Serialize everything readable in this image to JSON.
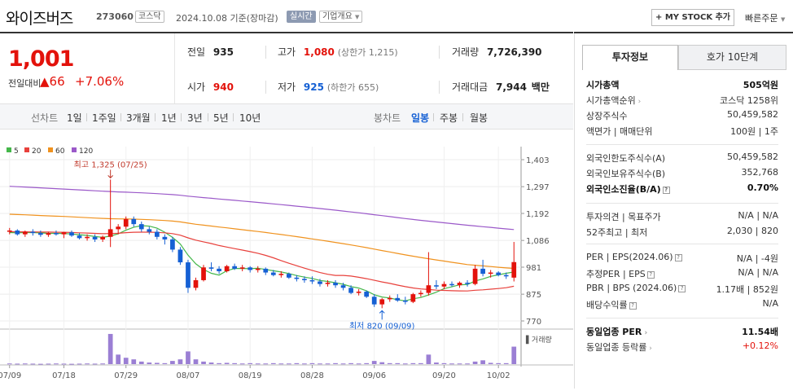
{
  "header": {
    "name": "와이즈버즈",
    "code": "273060",
    "market": "코스닥",
    "date": "2024.10.08  기준(장마감)",
    "realtime": "실시간",
    "company_info": "기업개요",
    "my_stock": "+ MY STOCK 추가",
    "quick_order": "빠른주문"
  },
  "price": {
    "current": "1,001",
    "change_label": "전일대비",
    "change_value": "▲66",
    "change_pct": "+7.06%"
  },
  "stats": {
    "prev_label": "전일",
    "prev": "935",
    "high_label": "고가",
    "high": "1,080",
    "upper_limit": "(상한가 1,215)",
    "volume_label": "거래량",
    "volume": "7,726,390",
    "open_label": "시가",
    "open": "940",
    "low_label": "저가",
    "low": "925",
    "lower_limit": "(하한가 655)",
    "amount_label": "거래대금",
    "amount": "7,944",
    "amount_unit": "백만"
  },
  "tabs": {
    "line_label": "선차트",
    "line_tabs": [
      "1일",
      "1주일",
      "3개월",
      "1년",
      "3년",
      "5년",
      "10년"
    ],
    "candle_label": "봉차트",
    "candle_tabs": [
      "일봉",
      "주봉",
      "월봉"
    ],
    "active_candle": "일봉"
  },
  "sidebar": {
    "tab_invest": "투자정보",
    "tab_hoga": "호가 10단계",
    "rows1": [
      {
        "label": "시가총액",
        "value": "505억원",
        "bold": true
      },
      {
        "label": "시가총액순위",
        "value": "코스닥 1258위",
        "arrow": true
      },
      {
        "label": "상장주식수",
        "value": "50,459,582"
      },
      {
        "label": "액면가 | 매매단위",
        "value": "100원 | 1주"
      }
    ],
    "rows2": [
      {
        "label": "외국인한도주식수(A)",
        "value": "50,459,582"
      },
      {
        "label": "외국인보유주식수(B)",
        "value": "352,768"
      },
      {
        "label": "외국인소진율(B/A)",
        "value": "0.70%",
        "bold": true,
        "help": true
      }
    ],
    "rows3": [
      {
        "label": "투자의견 | 목표주가",
        "value": "N/A | N/A"
      },
      {
        "label": "52주최고 | 최저",
        "value": "2,030 | 820"
      }
    ],
    "rows4": [
      {
        "label": "PER | EPS(2024.06)",
        "value": "N/A | -4원",
        "help": true
      },
      {
        "label": "추정PER | EPS",
        "value": "N/A | N/A",
        "help": true
      },
      {
        "label": "PBR | BPS (2024.06)",
        "value": "1.17배 | 852원",
        "help": true
      },
      {
        "label": "배당수익률",
        "value": "N/A",
        "help": true
      }
    ],
    "rows5": [
      {
        "label": "동일업종 PER",
        "value": "11.54배",
        "bold": true,
        "arrow": true
      },
      {
        "label": "동일업종 등락률",
        "value": "+0.12%",
        "arrow": true,
        "red": true
      }
    ]
  },
  "chart_data": {
    "type": "candlestick",
    "legend": [
      {
        "name": "5",
        "color": "#44b74a"
      },
      {
        "name": "20",
        "color": "#e8413c"
      },
      {
        "name": "60",
        "color": "#f0921e"
      },
      {
        "name": "120",
        "color": "#9b59c9"
      }
    ],
    "y_ticks": [
      1403,
      1297,
      1192,
      1086,
      981,
      875,
      770
    ],
    "ylim": [
      770,
      1403
    ],
    "x_ticks": [
      "07/09",
      "07/18",
      "07/29",
      "08/07",
      "08/19",
      "08/28",
      "09/06",
      "09/20",
      "10/02"
    ],
    "volume_label": "거래량",
    "annotation_high": "최고 1,325 (07/25)",
    "annotation_low": "최저 820 (09/09)",
    "candles": [
      [
        1120,
        1135,
        1110,
        1125
      ],
      [
        1125,
        1130,
        1105,
        1110
      ],
      [
        1110,
        1125,
        1100,
        1120
      ],
      [
        1120,
        1130,
        1105,
        1115
      ],
      [
        1115,
        1125,
        1100,
        1108
      ],
      [
        1108,
        1120,
        1100,
        1115
      ],
      [
        1115,
        1125,
        1105,
        1110
      ],
      [
        1110,
        1120,
        1095,
        1118
      ],
      [
        1118,
        1125,
        1100,
        1105
      ],
      [
        1105,
        1115,
        1090,
        1095
      ],
      [
        1095,
        1110,
        1085,
        1100
      ],
      [
        1100,
        1110,
        1080,
        1090
      ],
      [
        1090,
        1105,
        1080,
        1100
      ],
      [
        1100,
        1325,
        1060,
        1130
      ],
      [
        1130,
        1150,
        1110,
        1140
      ],
      [
        1140,
        1180,
        1130,
        1170
      ],
      [
        1170,
        1180,
        1140,
        1150
      ],
      [
        1150,
        1160,
        1120,
        1130
      ],
      [
        1130,
        1140,
        1110,
        1120
      ],
      [
        1120,
        1130,
        1090,
        1100
      ],
      [
        1100,
        1110,
        1070,
        1090
      ],
      [
        1090,
        1100,
        1040,
        1050
      ],
      [
        1050,
        1060,
        990,
        1000
      ],
      [
        1000,
        1010,
        880,
        900
      ],
      [
        900,
        940,
        890,
        930
      ],
      [
        930,
        990,
        925,
        980
      ],
      [
        980,
        1000,
        965,
        975
      ],
      [
        975,
        985,
        955,
        965
      ],
      [
        965,
        990,
        960,
        985
      ],
      [
        985,
        995,
        970,
        975
      ],
      [
        975,
        990,
        965,
        980
      ],
      [
        980,
        985,
        960,
        970
      ],
      [
        970,
        985,
        960,
        975
      ],
      [
        975,
        980,
        950,
        960
      ],
      [
        960,
        970,
        945,
        950
      ],
      [
        950,
        965,
        940,
        955
      ],
      [
        955,
        960,
        935,
        940
      ],
      [
        940,
        950,
        925,
        935
      ],
      [
        935,
        945,
        920,
        930
      ],
      [
        930,
        945,
        915,
        925
      ],
      [
        925,
        935,
        905,
        915
      ],
      [
        915,
        930,
        905,
        920
      ],
      [
        920,
        930,
        900,
        910
      ],
      [
        910,
        920,
        890,
        900
      ],
      [
        900,
        910,
        875,
        880
      ],
      [
        880,
        895,
        870,
        885
      ],
      [
        885,
        890,
        860,
        865
      ],
      [
        865,
        875,
        825,
        835
      ],
      [
        835,
        860,
        820,
        855
      ],
      [
        855,
        870,
        845,
        860
      ],
      [
        860,
        875,
        845,
        850
      ],
      [
        850,
        865,
        835,
        845
      ],
      [
        845,
        880,
        840,
        875
      ],
      [
        875,
        890,
        865,
        880
      ],
      [
        880,
        1040,
        870,
        910
      ],
      [
        910,
        930,
        895,
        905
      ],
      [
        905,
        925,
        895,
        915
      ],
      [
        915,
        925,
        905,
        910
      ],
      [
        910,
        925,
        900,
        920
      ],
      [
        920,
        930,
        905,
        915
      ],
      [
        915,
        990,
        910,
        975
      ],
      [
        975,
        1010,
        945,
        955
      ],
      [
        955,
        970,
        940,
        960
      ],
      [
        960,
        965,
        945,
        950
      ],
      [
        950,
        960,
        935,
        945
      ],
      [
        940,
        1080,
        925,
        1001
      ]
    ],
    "volumes": [
      0.02,
      0.015,
      0.02,
      0.015,
      0.01,
      0.015,
      0.02,
      0.015,
      0.01,
      0.015,
      0.02,
      0.015,
      0.02,
      0.95,
      0.3,
      0.2,
      0.15,
      0.08,
      0.05,
      0.04,
      0.03,
      0.1,
      0.15,
      0.4,
      0.15,
      0.08,
      0.05,
      0.03,
      0.04,
      0.03,
      0.02,
      0.03,
      0.02,
      0.02,
      0.03,
      0.02,
      0.02,
      0.03,
      0.02,
      0.03,
      0.02,
      0.02,
      0.03,
      0.02,
      0.03,
      0.02,
      0.03,
      0.1,
      0.06,
      0.03,
      0.03,
      0.02,
      0.03,
      0.03,
      0.3,
      0.05,
      0.03,
      0.02,
      0.02,
      0.02,
      0.08,
      0.12,
      0.04,
      0.03,
      0.03,
      0.55
    ]
  }
}
